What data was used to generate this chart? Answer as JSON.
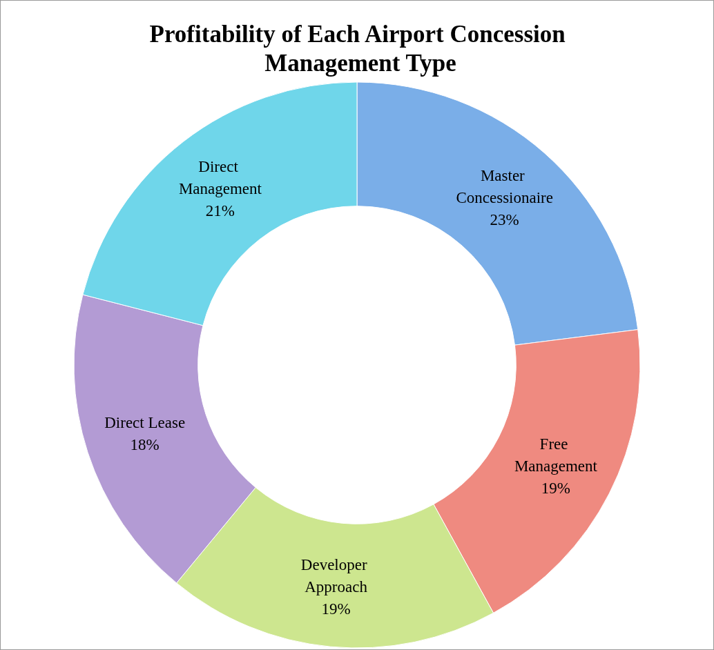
{
  "chart_data": {
    "type": "donut",
    "title": "Profitability of Each Airport Concession Management Type",
    "categories": [
      "Master Concessionaire",
      "Free Management",
      "Developer Approach",
      "Direct Lease",
      "Direct Management"
    ],
    "values": [
      23,
      19,
      19,
      18,
      21
    ],
    "colors": [
      "#7aaee8",
      "#ef8a80",
      "#cde68f",
      "#b39bd4",
      "#6fd6ea"
    ],
    "value_labels": [
      "23%",
      "19%",
      "19%",
      "18%",
      "21%"
    ],
    "legend": false
  }
}
